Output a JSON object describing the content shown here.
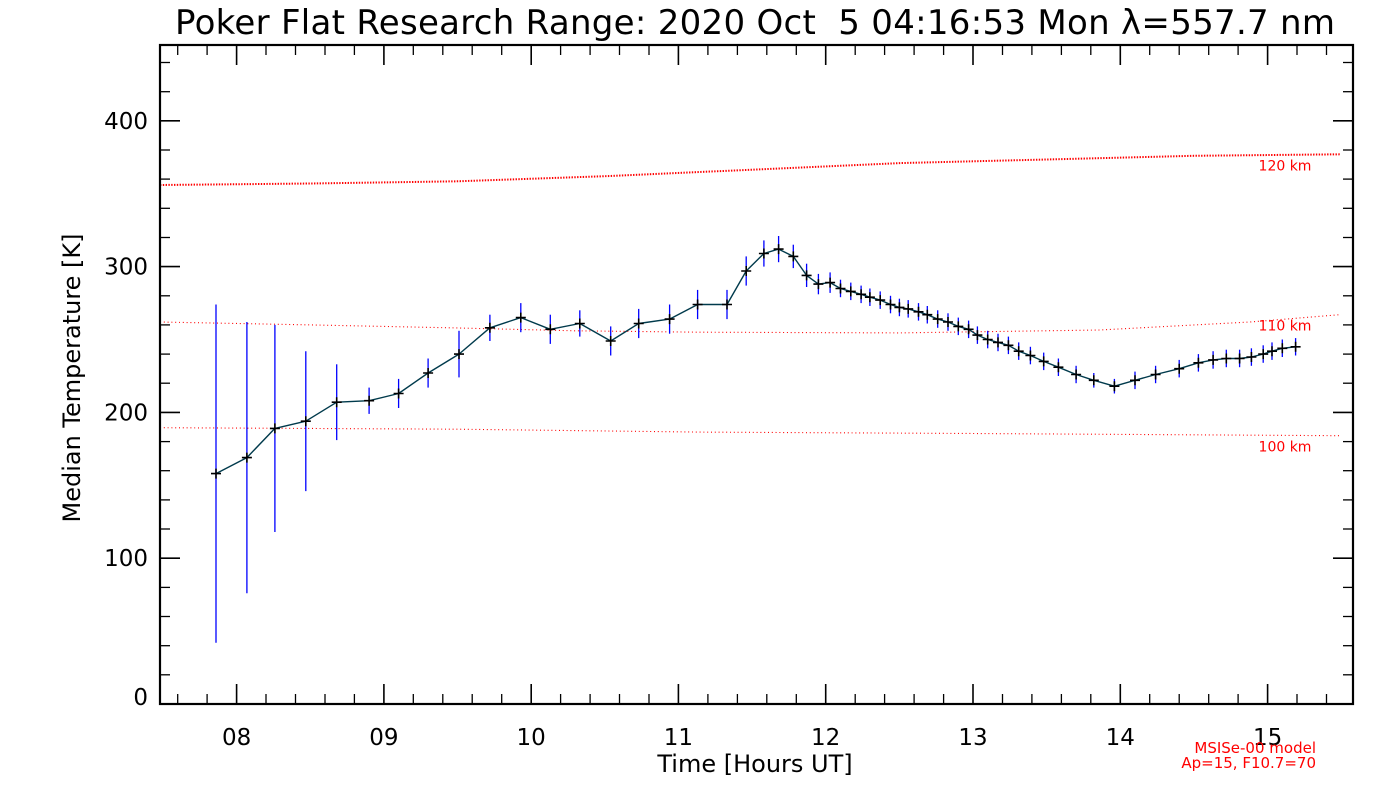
{
  "chart_data": {
    "type": "line",
    "title": "Poker Flat Research Range: 2020 Oct  5 04:16:53 Mon λ=557.7 nm",
    "xlabel": "Time [Hours UT]",
    "ylabel": "Median Temperature [K]",
    "xlim": [
      7.48,
      15.58
    ],
    "ylim": [
      0,
      452
    ],
    "xticks": [
      8,
      9,
      10,
      11,
      12,
      13,
      14,
      15
    ],
    "xtick_labels": [
      "08",
      "09",
      "10",
      "11",
      "12",
      "13",
      "14",
      "15"
    ],
    "yticks": [
      0,
      100,
      200,
      300,
      400
    ],
    "ytick_labels": [
      "0",
      "100",
      "200",
      "300",
      "400"
    ],
    "grid": false,
    "colors": {
      "axes": "#000000",
      "data_line": "#003a4c",
      "marker": "#000000",
      "error_bar": "#0000ff",
      "model": "#ff0000"
    },
    "series": [
      {
        "x": [
          7.86,
          8.07,
          8.26,
          8.47,
          8.68,
          8.9,
          9.1,
          9.3,
          9.51,
          9.72,
          9.93,
          10.13,
          10.33,
          10.54,
          10.73,
          10.94,
          11.13,
          11.33,
          11.46,
          11.58,
          11.68,
          11.78,
          11.87,
          11.95,
          12.03,
          12.1,
          12.17,
          12.24,
          12.3,
          12.37,
          12.44,
          12.5,
          12.56,
          12.63,
          12.69,
          12.76,
          12.83,
          12.9,
          12.97,
          13.03,
          13.1,
          13.17,
          13.24,
          13.31,
          13.39,
          13.48,
          13.58,
          13.7,
          13.82,
          13.96,
          14.1,
          14.24,
          14.4,
          14.53,
          14.63,
          14.72,
          14.81,
          14.89,
          14.97,
          15.03,
          15.1,
          15.19
        ],
        "y": [
          158,
          169,
          189,
          194,
          207,
          208,
          213,
          227,
          240,
          258,
          265,
          257,
          261,
          249,
          261,
          264,
          274,
          274,
          297,
          309,
          312,
          307,
          294,
          288,
          289,
          285,
          283,
          281,
          279,
          277,
          274,
          272,
          271,
          269,
          267,
          264,
          262,
          259,
          257,
          253,
          250,
          248,
          246,
          242,
          239,
          235,
          231,
          226,
          222,
          218,
          222,
          226,
          230,
          234,
          236,
          237,
          237,
          238,
          240,
          242,
          244,
          245
        ],
        "y_err": [
          116,
          93,
          71,
          48,
          26,
          9,
          10,
          10,
          16,
          9,
          10,
          10,
          9,
          10,
          10,
          10,
          10,
          10,
          10,
          9,
          9,
          8,
          8,
          7,
          7,
          6,
          6,
          6,
          6,
          6,
          6,
          6,
          6,
          6,
          6,
          6,
          6,
          6,
          6,
          6,
          6,
          6,
          6,
          6,
          6,
          6,
          6,
          6,
          5,
          5,
          6,
          6,
          6,
          6,
          6,
          6,
          6,
          6,
          6,
          6,
          6,
          6
        ]
      }
    ],
    "model_lines": [
      {
        "label": "120 km",
        "x": [
          7.48,
          8.5,
          9.5,
          10.5,
          11.5,
          12.5,
          13.5,
          14.5,
          15.49
        ],
        "y": [
          356,
          357,
          358.5,
          362,
          366.5,
          371,
          373.5,
          376,
          377
        ]
      },
      {
        "label": "110 km",
        "x": [
          7.48,
          8.5,
          9.45,
          10.3,
          11.15,
          12.5,
          13.86,
          14.88,
          15.49
        ],
        "y": [
          262,
          260,
          258,
          256,
          255,
          254.5,
          256.5,
          262,
          267
        ]
      },
      {
        "label": "100 km",
        "x": [
          7.48,
          9.5,
          11.15,
          13.0,
          15.49
        ],
        "y": [
          189.5,
          188.5,
          186.5,
          185.5,
          184
        ]
      }
    ],
    "annotations": [
      "MSISe-00 model",
      "Ap=15, F10.7=70"
    ]
  }
}
